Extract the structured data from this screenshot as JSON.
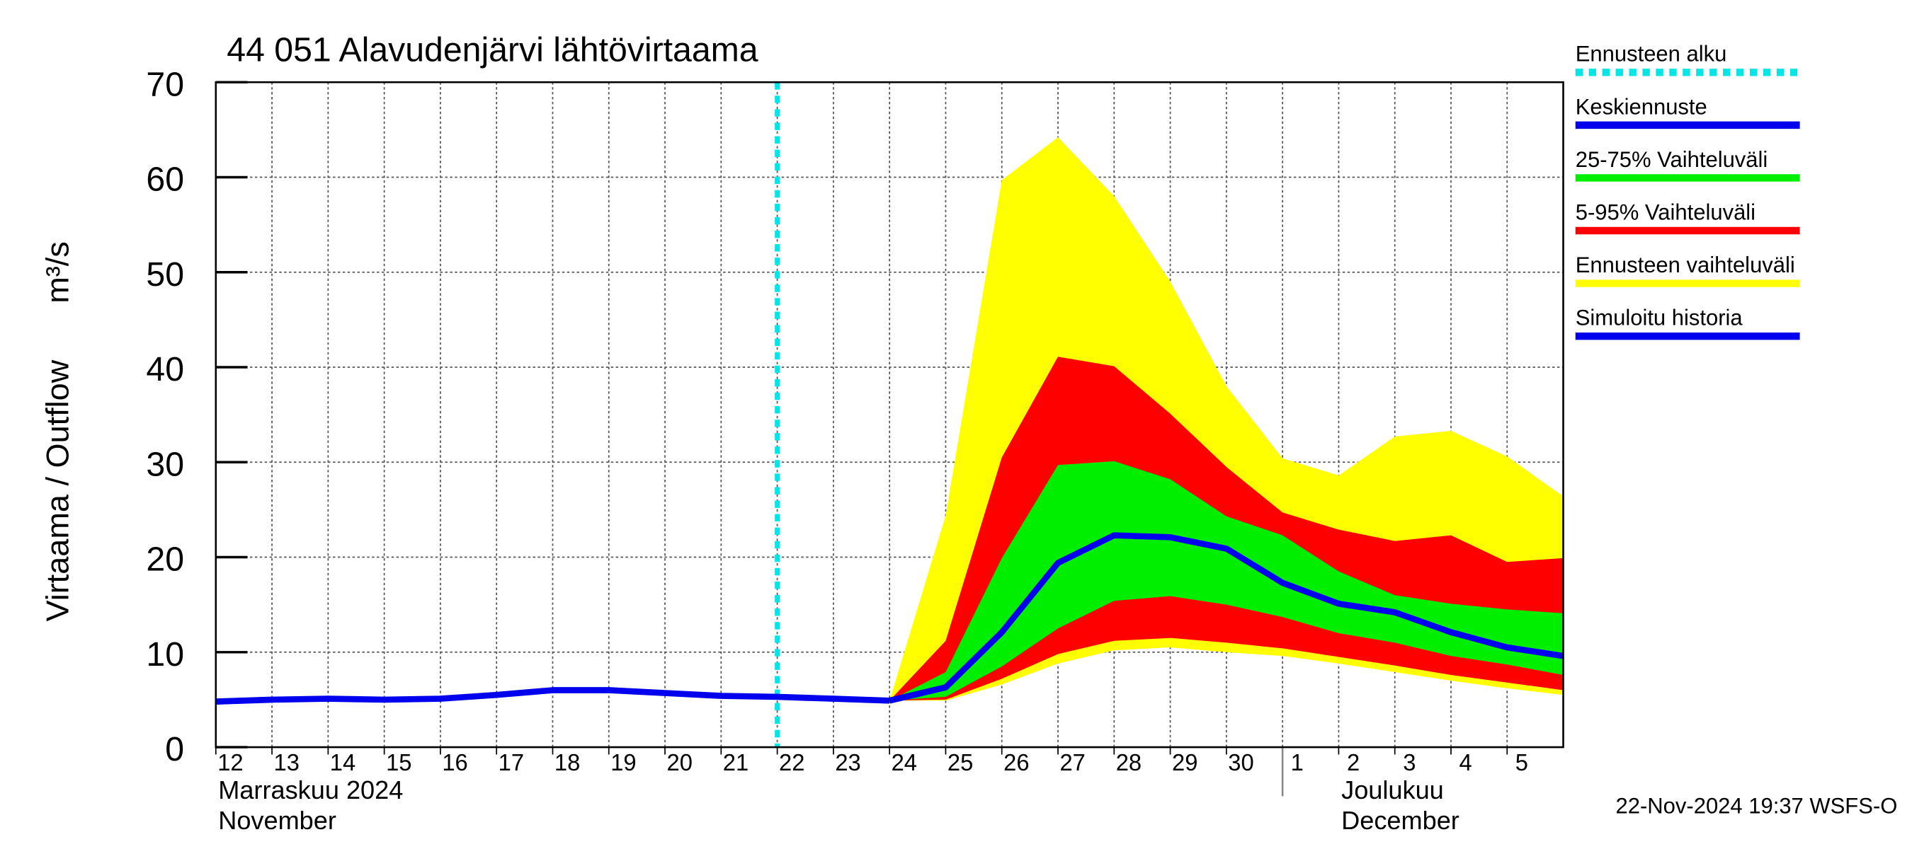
{
  "chart_data": {
    "type": "line",
    "title": "44 051 Alavudenjärvi lähtövirtaama",
    "ylabel": "Virtaama / Outflow",
    "yunit": "m³/s",
    "month_labels": [
      "Marraskuu 2024",
      "November",
      "Joulukuu",
      "December"
    ],
    "timestamp": "22-Nov-2024 19:37 WSFS-O",
    "x": [
      "2024-11-12",
      "2024-11-13",
      "2024-11-14",
      "2024-11-15",
      "2024-11-16",
      "2024-11-17",
      "2024-11-18",
      "2024-11-19",
      "2024-11-20",
      "2024-11-21",
      "2024-11-22",
      "2024-11-23",
      "2024-11-24",
      "2024-11-25",
      "2024-11-26",
      "2024-11-27",
      "2024-11-28",
      "2024-11-29",
      "2024-11-30",
      "2024-12-01",
      "2024-12-02",
      "2024-12-03",
      "2024-12-04",
      "2024-12-05",
      "2024-12-06"
    ],
    "xlim": [
      "2024-11-12",
      "2024-12-06"
    ],
    "xticks": [
      {
        "value": "2024-11-12",
        "label": "12"
      },
      {
        "value": "2024-11-13",
        "label": "13"
      },
      {
        "value": "2024-11-14",
        "label": "14"
      },
      {
        "value": "2024-11-15",
        "label": "15"
      },
      {
        "value": "2024-11-16",
        "label": "16"
      },
      {
        "value": "2024-11-17",
        "label": "17"
      },
      {
        "value": "2024-11-18",
        "label": "18"
      },
      {
        "value": "2024-11-19",
        "label": "19"
      },
      {
        "value": "2024-11-20",
        "label": "20"
      },
      {
        "value": "2024-11-21",
        "label": "21"
      },
      {
        "value": "2024-11-22",
        "label": "22"
      },
      {
        "value": "2024-11-23",
        "label": "23"
      },
      {
        "value": "2024-11-24",
        "label": "24"
      },
      {
        "value": "2024-11-25",
        "label": "25"
      },
      {
        "value": "2024-11-26",
        "label": "26"
      },
      {
        "value": "2024-11-27",
        "label": "27"
      },
      {
        "value": "2024-11-28",
        "label": "28"
      },
      {
        "value": "2024-11-29",
        "label": "29"
      },
      {
        "value": "2024-11-30",
        "label": "30"
      },
      {
        "value": "2024-12-01",
        "label": "1"
      },
      {
        "value": "2024-12-02",
        "label": "2"
      },
      {
        "value": "2024-12-03",
        "label": "3"
      },
      {
        "value": "2024-12-04",
        "label": "4"
      },
      {
        "value": "2024-12-05",
        "label": "5"
      }
    ],
    "ylim": [
      0,
      70
    ],
    "yticks": [
      0,
      10,
      20,
      30,
      40,
      50,
      60,
      70
    ],
    "grid": true,
    "forecast_start": {
      "name": "Ennusteen alku",
      "color": "#00e5e5",
      "x": "2024-11-22"
    },
    "series": [
      {
        "name": "Keskiennuste",
        "color": "#0000ee",
        "kind": "line",
        "values": [
          null,
          null,
          null,
          null,
          null,
          null,
          null,
          null,
          null,
          null,
          null,
          null,
          4.9,
          6.3,
          12.1,
          19.4,
          22.3,
          22.1,
          20.9,
          17.3,
          15.1,
          14.2,
          12.1,
          10.5,
          9.6
        ]
      },
      {
        "name": "25-75% Vaihteluväli",
        "color": "#00ee00",
        "kind": "band",
        "values": [
          null,
          null,
          null,
          null,
          null,
          null,
          null,
          null,
          null,
          null,
          null,
          null,
          4.9,
          7.9,
          19.9,
          29.7,
          30.1,
          28.2,
          24.3,
          22.3,
          18.5,
          16.0,
          15.1,
          14.5,
          14.1
        ],
        "lower": [
          null,
          null,
          null,
          null,
          null,
          null,
          null,
          null,
          null,
          null,
          null,
          null,
          4.9,
          5.3,
          8.5,
          12.5,
          15.4,
          15.9,
          15.0,
          13.7,
          12.0,
          11.0,
          9.6,
          8.7,
          7.6
        ]
      },
      {
        "name": "5-95% Vaihteluväli",
        "color": "#ff0000",
        "kind": "band",
        "values": [
          null,
          null,
          null,
          null,
          null,
          null,
          null,
          null,
          null,
          null,
          null,
          null,
          4.9,
          11.2,
          30.5,
          41.1,
          40.1,
          35.1,
          29.5,
          24.7,
          22.9,
          21.7,
          22.3,
          19.5,
          19.9
        ],
        "lower": [
          null,
          null,
          null,
          null,
          null,
          null,
          null,
          null,
          null,
          null,
          null,
          null,
          4.9,
          5.0,
          7.2,
          9.8,
          11.2,
          11.5,
          11.0,
          10.4,
          9.5,
          8.6,
          7.6,
          6.8,
          6.0
        ]
      },
      {
        "name": "Ennusteen vaihteluväli",
        "color": "#ffff00",
        "kind": "band",
        "values": [
          null,
          null,
          null,
          null,
          null,
          null,
          null,
          null,
          null,
          null,
          null,
          null,
          4.9,
          24.4,
          59.7,
          64.2,
          58.0,
          49.0,
          38.0,
          30.4,
          28.6,
          32.7,
          33.3,
          30.6,
          26.4
        ],
        "lower": [
          null,
          null,
          null,
          null,
          null,
          null,
          null,
          null,
          null,
          null,
          null,
          null,
          4.9,
          4.9,
          6.6,
          8.8,
          10.2,
          10.5,
          10.0,
          9.6,
          8.8,
          7.9,
          7.0,
          6.2,
          5.5
        ]
      },
      {
        "name": "Simuloitu historia",
        "color": "#0000ee",
        "kind": "line",
        "values": [
          4.8,
          5.0,
          5.1,
          5.0,
          5.1,
          5.5,
          6.0,
          6.0,
          5.7,
          5.4,
          5.3,
          5.1,
          4.9,
          null,
          null,
          null,
          null,
          null,
          null,
          null,
          null,
          null,
          null,
          null,
          null
        ]
      }
    ]
  }
}
